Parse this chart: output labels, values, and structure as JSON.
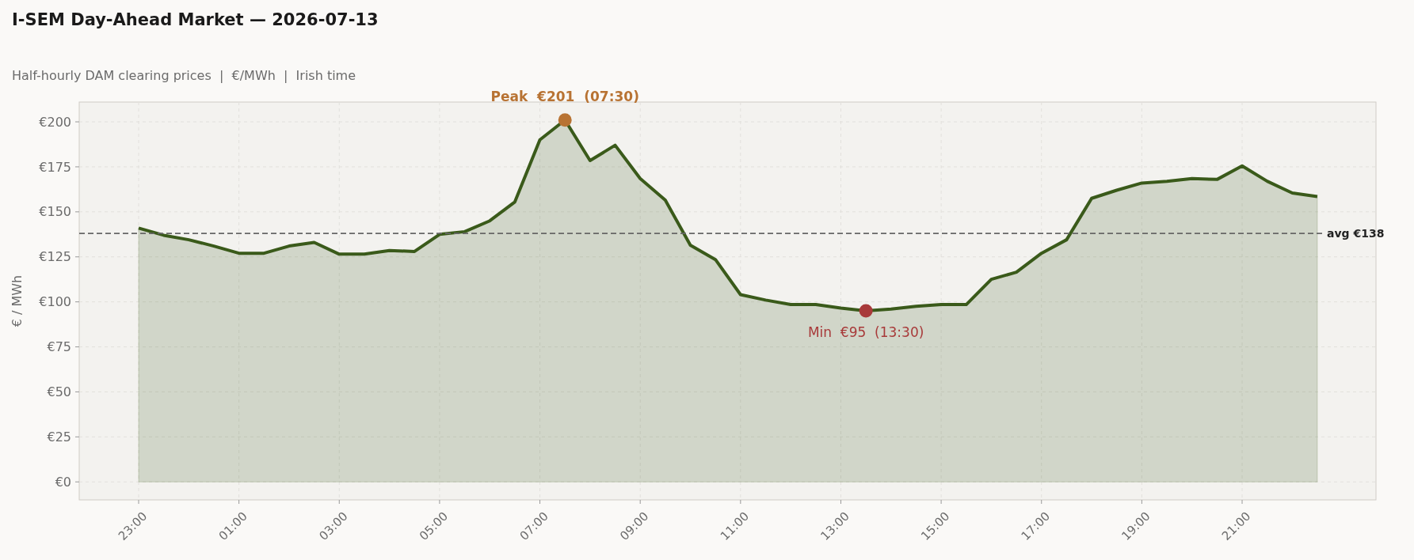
{
  "chart_data": {
    "type": "area",
    "title": "I-SEM Day-Ahead Market — 2026-07-13",
    "subtitle": "Half-hourly DAM clearing prices  |  €/MWh  |  Irish time",
    "ylabel": "€ / MWh",
    "categories": [
      "23:00",
      null,
      null,
      null,
      "01:00",
      null,
      null,
      null,
      "03:00",
      null,
      null,
      null,
      "05:00",
      null,
      null,
      null,
      "07:00",
      null,
      null,
      null,
      "09:00",
      null,
      null,
      null,
      "11:00",
      null,
      null,
      null,
      "13:00",
      null,
      null,
      null,
      "15:00",
      null,
      null,
      null,
      "17:00",
      null,
      null,
      null,
      "19:00",
      null,
      null,
      null,
      "21:00",
      null,
      null,
      null
    ],
    "series": [
      {
        "color": "#3a5a1a",
        "values": [
          141,
          137,
          134.5,
          131,
          127,
          127,
          131,
          133,
          126.5,
          126.5,
          128.5,
          128,
          137.5,
          139,
          145,
          155.5,
          190,
          201,
          178.5,
          187,
          168.5,
          156.5,
          131.5,
          123.5,
          104,
          101,
          98.5,
          98.5,
          96.5,
          95,
          96,
          97.5,
          98.5,
          98.5,
          112.5,
          116.5,
          127,
          134.5,
          157.5,
          162,
          166,
          167,
          168.5,
          168,
          175.5,
          167,
          160.5,
          158.5
        ]
      },
      {
        "type": "scatter",
        "color": "#b87333",
        "values": [
          null,
          null,
          null,
          null,
          null,
          null,
          null,
          null,
          null,
          null,
          null,
          null,
          null,
          null,
          null,
          null,
          null,
          201,
          null,
          null,
          null,
          null,
          null,
          null,
          null,
          null,
          null,
          null,
          null,
          null,
          null,
          null,
          null,
          null,
          null,
          null,
          null,
          null,
          null,
          null,
          null,
          null,
          null,
          null,
          null,
          null,
          null,
          null
        ]
      },
      {
        "type": "scatter",
        "color": "#a83a3a",
        "values": [
          null,
          null,
          null,
          null,
          null,
          null,
          null,
          null,
          null,
          null,
          null,
          null,
          null,
          null,
          null,
          null,
          null,
          null,
          null,
          null,
          null,
          null,
          null,
          null,
          null,
          null,
          null,
          null,
          null,
          95,
          null,
          null,
          null,
          null,
          null,
          null,
          null,
          null,
          null,
          null,
          null,
          null,
          null,
          null,
          null,
          null,
          null,
          null
        ]
      }
    ],
    "annotations": [
      "Peak  €201  (07:30)",
      "Min  €95  (13:30)"
    ],
    "ref_lines": [
      {
        "axis": "y",
        "value": 138,
        "label": "avg €138",
        "color": "#666666",
        "line_style": "dashed"
      }
    ],
    "ylim": [
      -10,
      211
    ],
    "yticks": [
      {
        "value": 0,
        "label": "€0"
      },
      {
        "value": 25,
        "label": "€25"
      },
      {
        "value": 50,
        "label": "€50"
      },
      {
        "value": 75,
        "label": "€75"
      },
      {
        "value": 100,
        "label": "€100"
      },
      {
        "value": 125,
        "label": "€125"
      },
      {
        "value": 150,
        "label": "€150"
      },
      {
        "value": 175,
        "label": "€175"
      },
      {
        "value": 200,
        "label": "€200"
      }
    ],
    "grid": true
  }
}
